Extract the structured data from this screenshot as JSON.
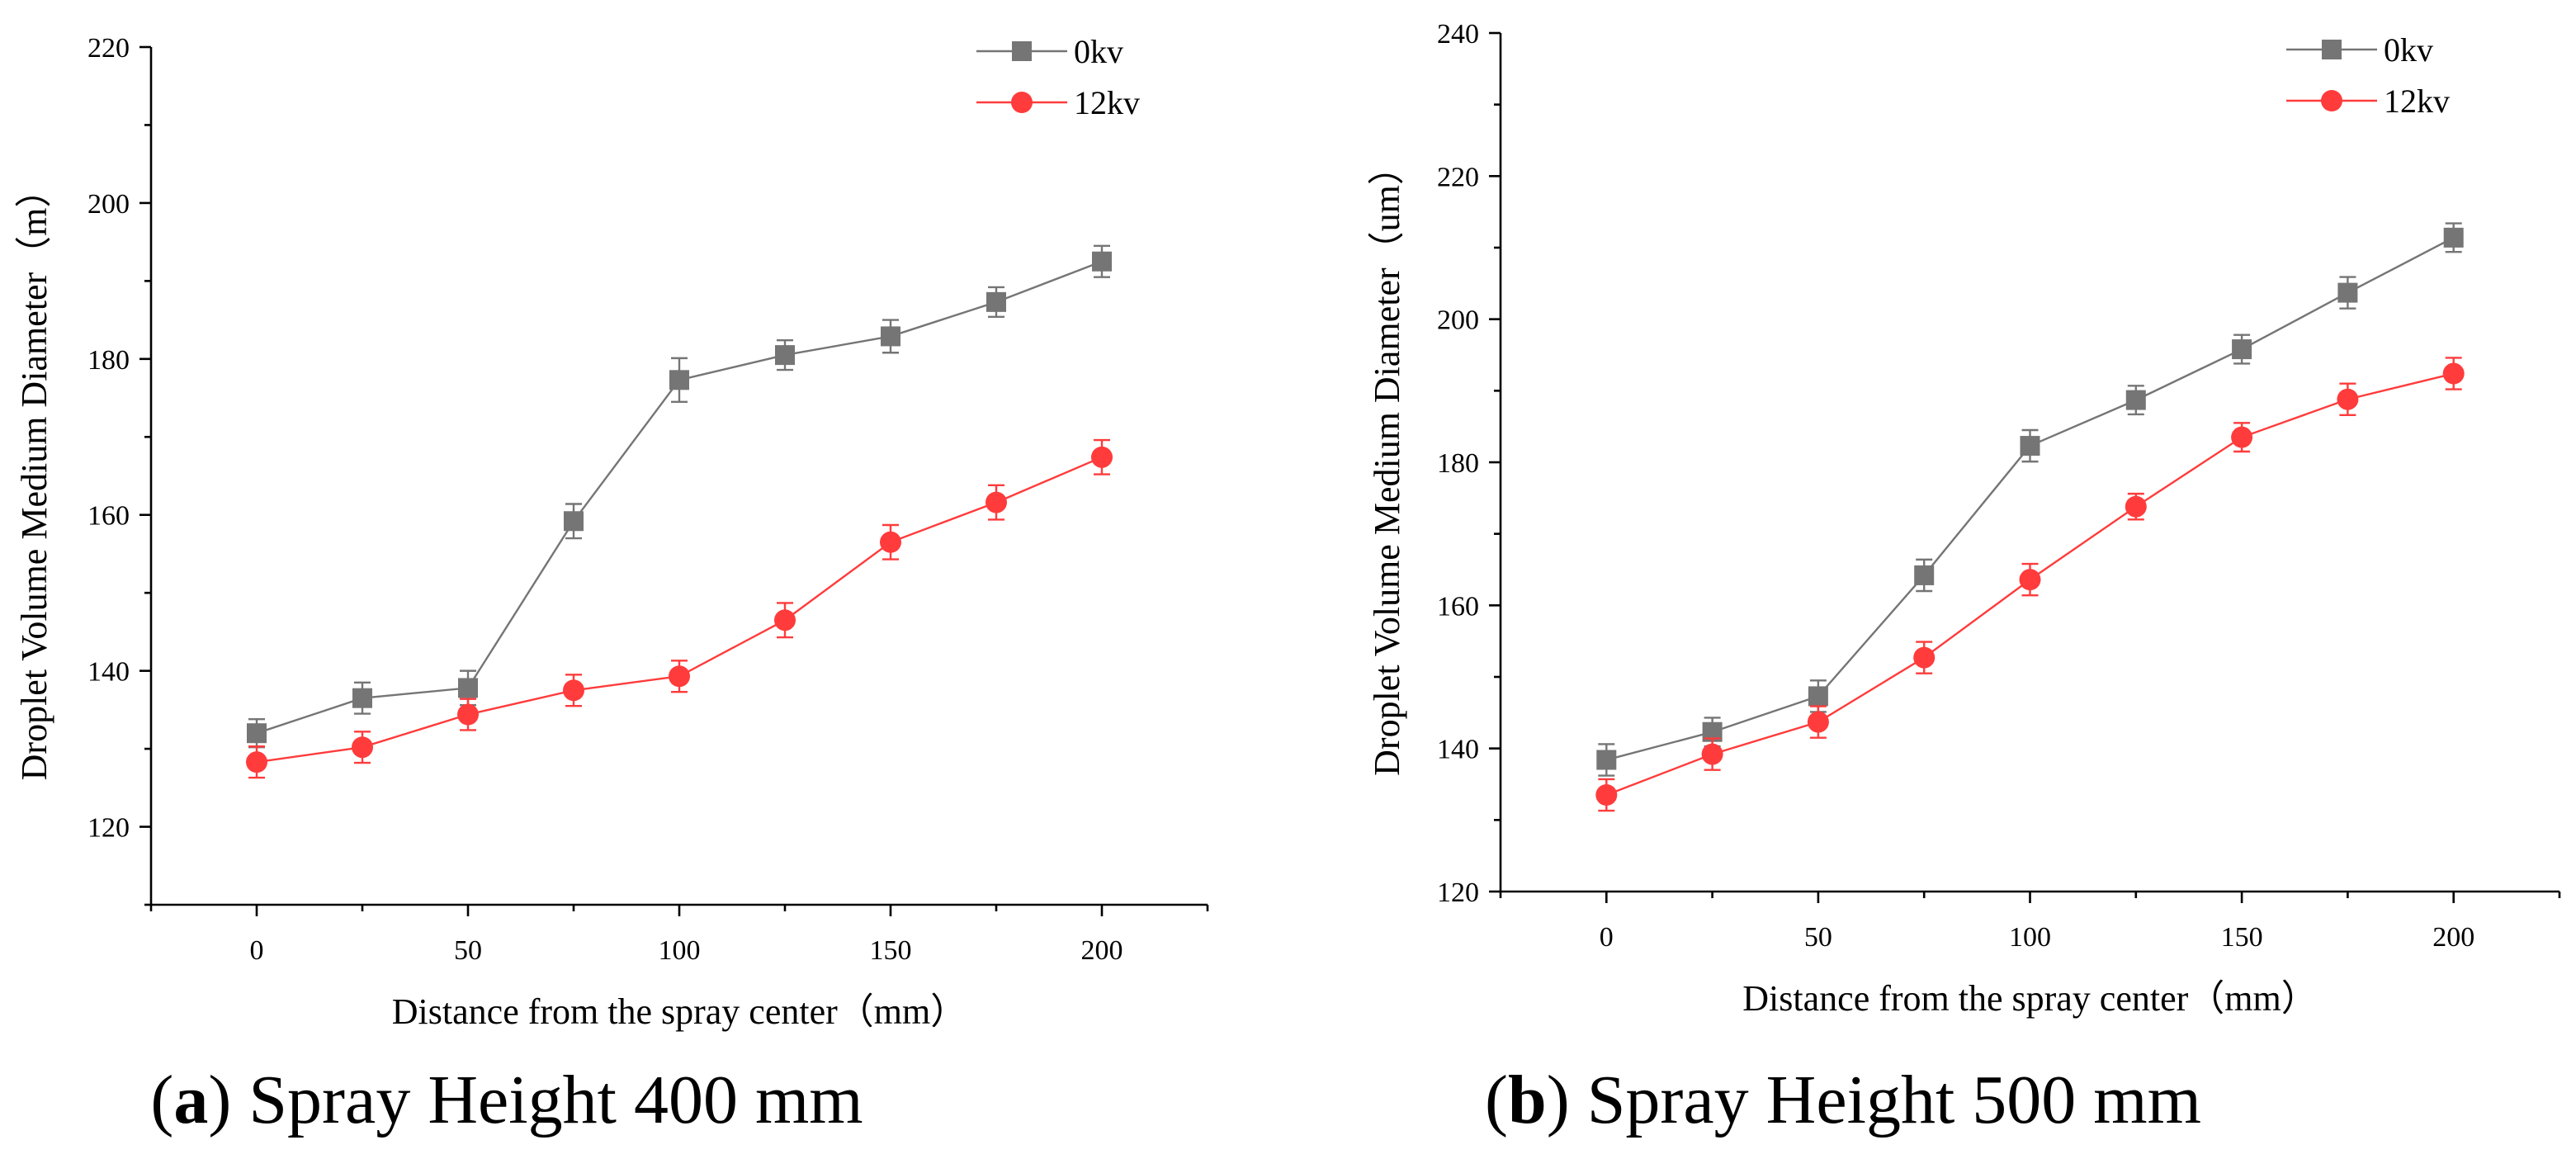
{
  "colors": {
    "s0": "#757575",
    "s1": "#ff3b3b"
  },
  "chart_data": [
    {
      "type": "line",
      "caption_letter": "a",
      "caption_text": "Spray Height 400 mm",
      "xlabel": "Distance from the spray center（mm）",
      "ylabel": "Droplet Volume Medium Diameter（m）",
      "xlim": [
        -25,
        225
      ],
      "ylim": [
        110,
        220
      ],
      "xticks": [
        0,
        50,
        100,
        150,
        200
      ],
      "yticks": [
        120,
        140,
        160,
        180,
        200,
        220
      ],
      "x": [
        0,
        25,
        50,
        75,
        100,
        125,
        150,
        175,
        200
      ],
      "series": [
        {
          "name": "0kv",
          "marker": "square",
          "values": [
            132,
            136.5,
            137.8,
            159.2,
            177.3,
            180.5,
            182.9,
            187.3,
            192.5
          ],
          "errors": [
            1.8,
            2.0,
            2.2,
            2.2,
            2.8,
            1.9,
            2.1,
            1.9,
            2.0
          ]
        },
        {
          "name": "12kv",
          "marker": "circle",
          "values": [
            128.3,
            130.2,
            134.4,
            137.5,
            139.3,
            146.5,
            156.5,
            161.6,
            167.4
          ],
          "errors": [
            2.0,
            2.0,
            2.0,
            2.0,
            2.0,
            2.2,
            2.2,
            2.2,
            2.2
          ]
        }
      ]
    },
    {
      "type": "line",
      "caption_letter": "b",
      "caption_text": "Spray Height 500 mm",
      "xlabel": "Distance from the spray center（mm）",
      "ylabel": "Droplet Volume Medium Diameter（um）",
      "xlim": [
        -25,
        225
      ],
      "ylim": [
        120,
        240
      ],
      "xticks": [
        0,
        50,
        100,
        150,
        200
      ],
      "yticks": [
        120,
        140,
        160,
        180,
        200,
        220,
        240
      ],
      "x": [
        0,
        25,
        50,
        75,
        100,
        125,
        150,
        175,
        200
      ],
      "series": [
        {
          "name": "0kv",
          "marker": "square",
          "values": [
            138.4,
            142.3,
            147.3,
            164.2,
            182.3,
            188.7,
            195.8,
            203.7,
            211.4
          ],
          "errors": [
            2.2,
            2.0,
            2.2,
            2.2,
            2.2,
            2.0,
            2.0,
            2.2,
            2.0
          ]
        },
        {
          "name": "12kv",
          "marker": "circle",
          "values": [
            133.5,
            139.2,
            143.7,
            152.7,
            163.6,
            173.8,
            183.5,
            188.8,
            192.4
          ],
          "errors": [
            2.2,
            2.2,
            2.2,
            2.2,
            2.2,
            1.8,
            2.0,
            2.2,
            2.2
          ]
        }
      ]
    }
  ]
}
